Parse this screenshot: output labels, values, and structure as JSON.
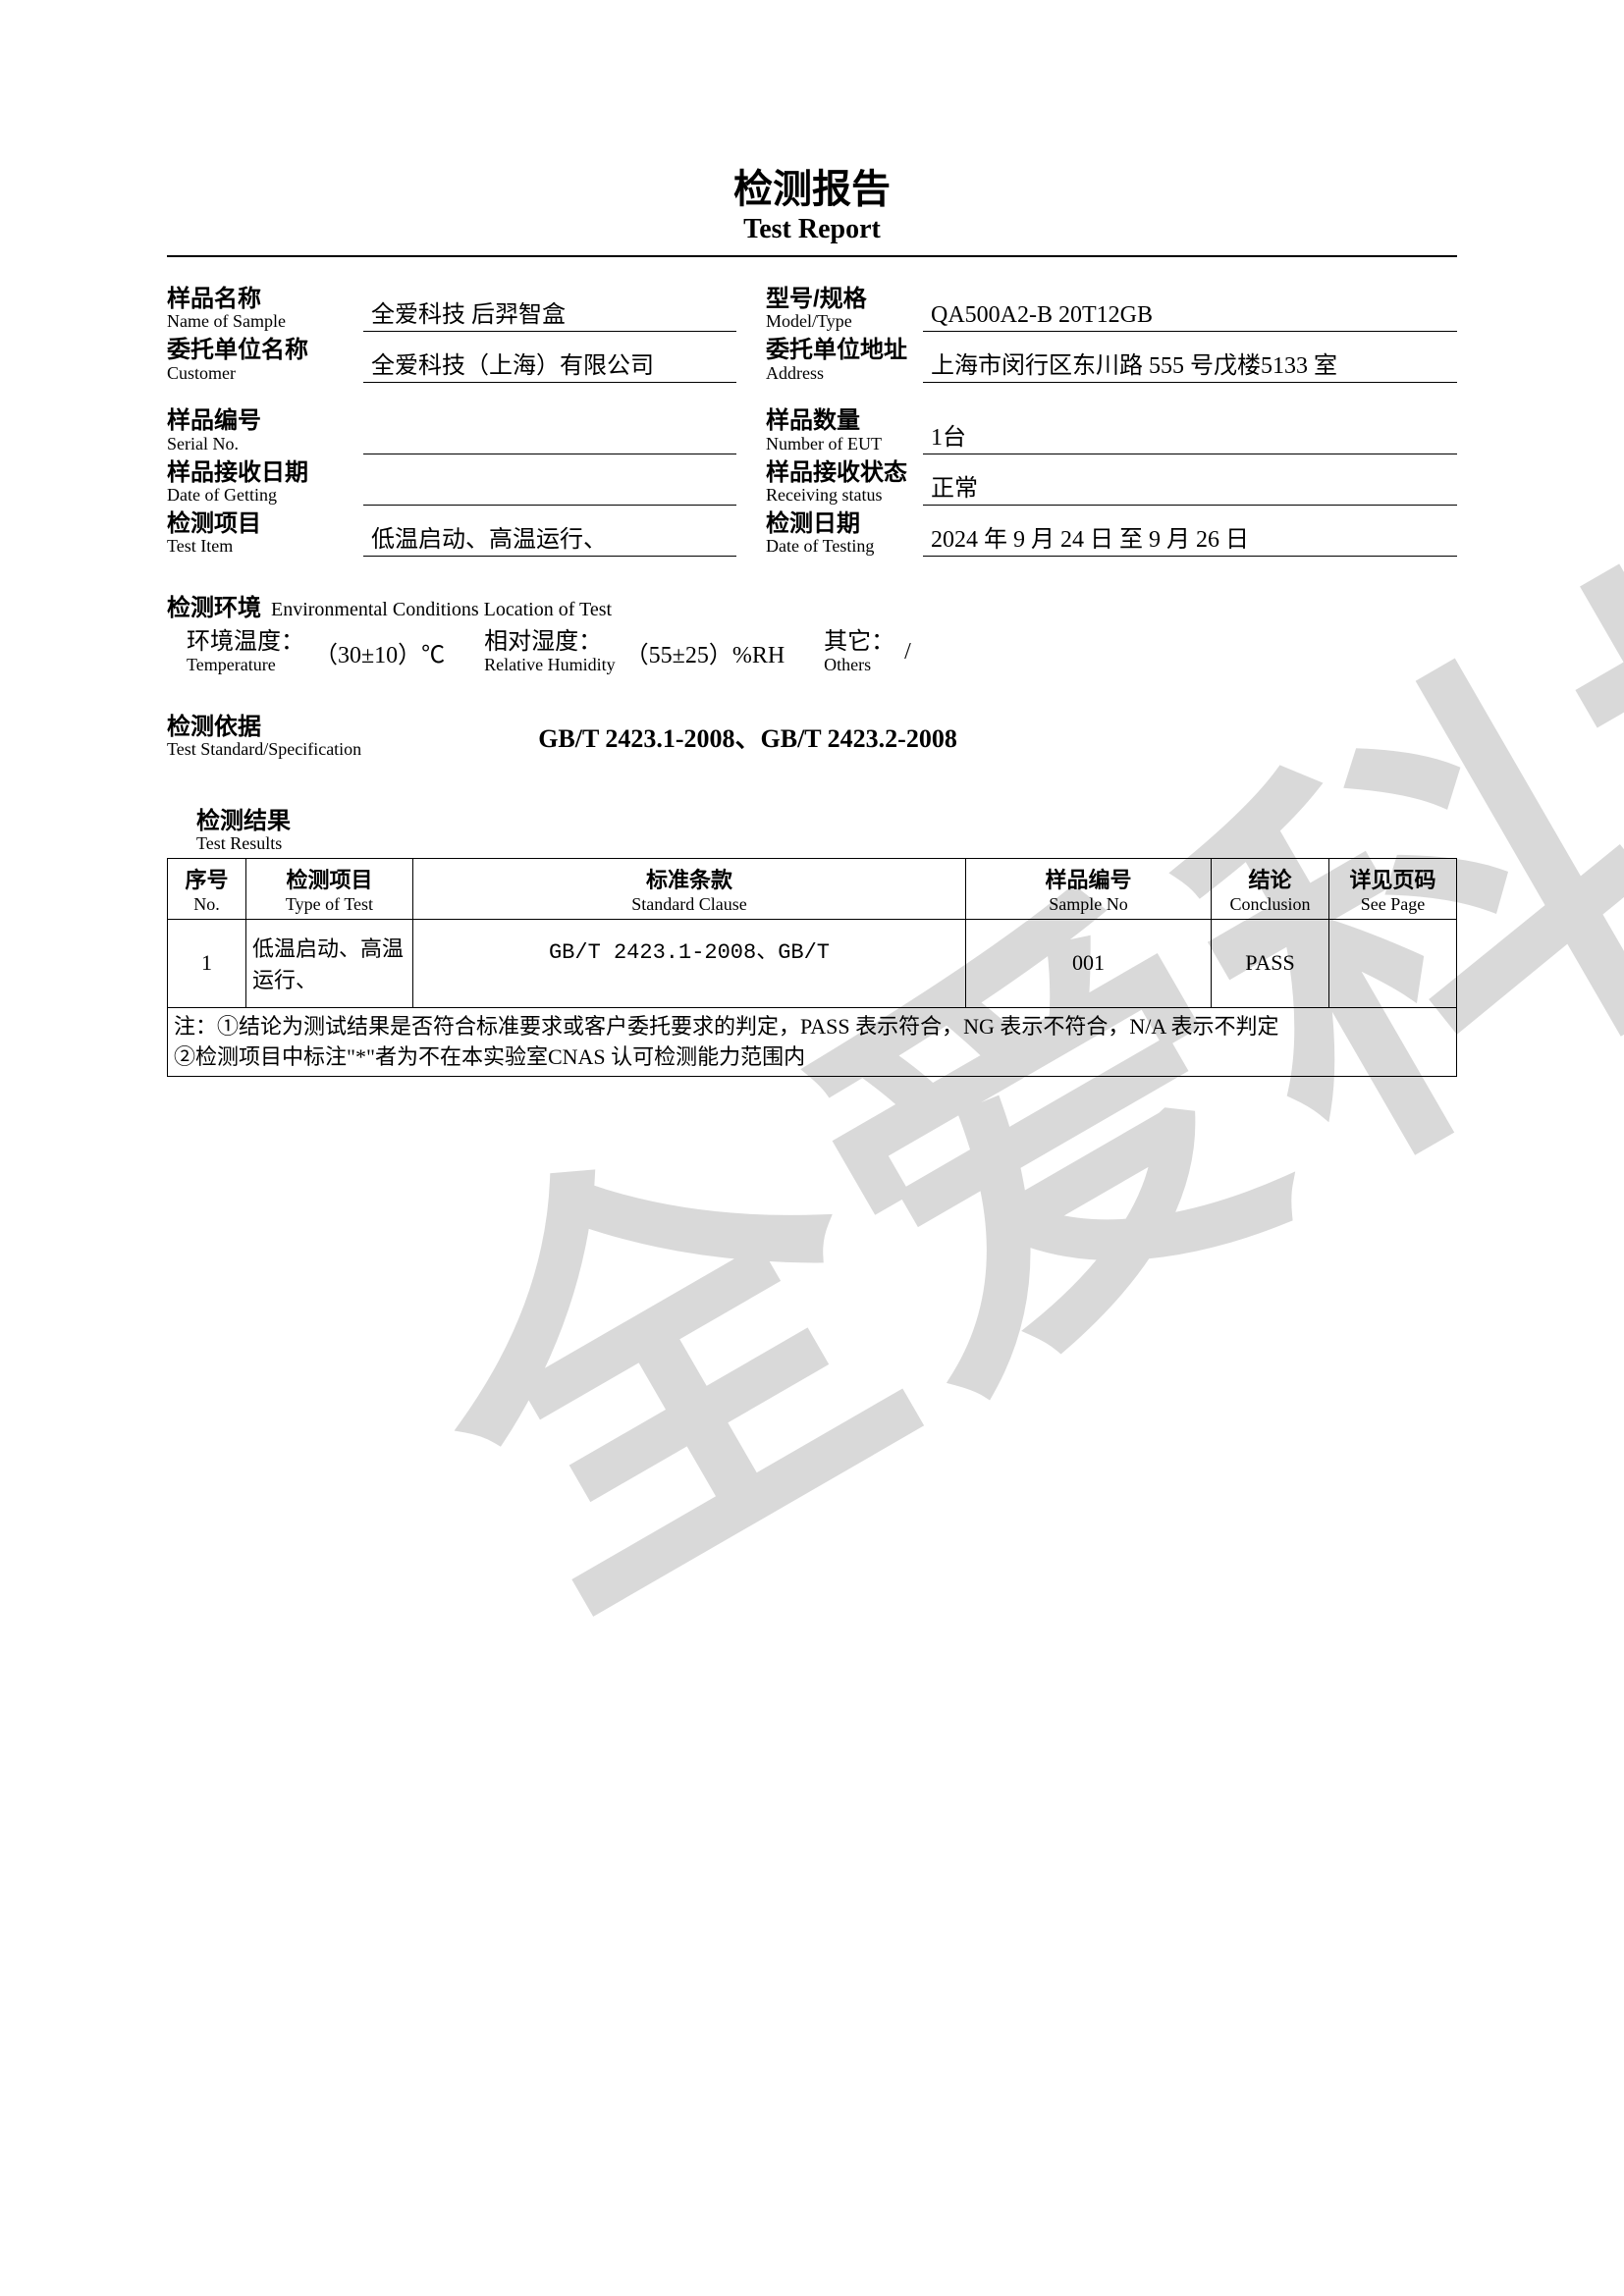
{
  "watermark_text": "全爱科技",
  "title": {
    "cn": "检测报告",
    "en": "Test Report"
  },
  "fields": {
    "sample_name": {
      "label_cn": "样品名称",
      "label_en": "Name of Sample",
      "value": "全爱科技  后羿智盒"
    },
    "model": {
      "label_cn": "型号/规格",
      "label_en": "Model/Type",
      "value": "QA500A2-B  20T12GB"
    },
    "customer": {
      "label_cn": "委托单位名称",
      "label_en": "Customer",
      "value": "全爱科技（上海）有限公司"
    },
    "address": {
      "label_cn": "委托单位地址",
      "label_en": "Address",
      "value": "上海市闵行区东川路 555 号戊楼5133 室"
    },
    "serial": {
      "label_cn": "样品编号",
      "label_en": "Serial No.",
      "value": ""
    },
    "qty": {
      "label_cn": "样品数量",
      "label_en": "Number of EUT",
      "value": "1台"
    },
    "recv_date": {
      "label_cn": "样品接收日期",
      "label_en": "Date of Getting",
      "value": ""
    },
    "recv_status": {
      "label_cn": "样品接收状态",
      "label_en": "Receiving status",
      "value": "正常"
    },
    "test_item": {
      "label_cn": "检测项目",
      "label_en": "Test Item",
      "value": "低温启动、高温运行、"
    },
    "test_date": {
      "label_cn": "检测日期",
      "label_en": "Date of Testing",
      "value": "2024 年 9 月 24 日  至  9 月 26 日"
    }
  },
  "env": {
    "header_cn": "检测环境",
    "header_en": "Environmental Conditions Location of Test",
    "temp_label_cn": "环境温度：",
    "temp_label_en": "Temperature",
    "temp_value": "（30±10）℃",
    "rh_label_cn": "相对湿度：",
    "rh_label_en": "Relative Humidity",
    "rh_value": "（55±25）%RH",
    "other_label_cn": "其它：",
    "other_label_en": "Others",
    "other_value": "/"
  },
  "standard": {
    "label_cn": "检测依据",
    "label_en": "Test Standard/Specification",
    "value": "GB/T 2423.1-2008、GB/T 2423.2-2008"
  },
  "results": {
    "header_cn": "检测结果",
    "header_en": "Test Results",
    "columns": {
      "no": {
        "cn": "序号",
        "en": "No."
      },
      "type": {
        "cn": "检测项目",
        "en": "Type of Test"
      },
      "clause": {
        "cn": "标准条款",
        "en": "Standard Clause"
      },
      "sample": {
        "cn": "样品编号",
        "en": "Sample No"
      },
      "conc": {
        "cn": "结论",
        "en": "Conclusion"
      },
      "page": {
        "cn": "详见页码",
        "en": "See Page"
      }
    },
    "rows": [
      {
        "no": "1",
        "type": "低温启动、高温运行、",
        "clause": "GB/T 2423.1-2008、GB/T",
        "sample": "001",
        "conc": "PASS",
        "page": ""
      }
    ],
    "note": "注：①结论为测试结果是否符合标准要求或客户委托要求的判定，PASS 表示符合，NG 表示不符合，N/A 表示不判定\n②检测项目中标注\"*\"者为不在本实验室CNAS 认可检测能力范围内"
  },
  "colors": {
    "text": "#000000",
    "watermark": "#d9d9d9",
    "background": "#ffffff",
    "border": "#000000"
  }
}
